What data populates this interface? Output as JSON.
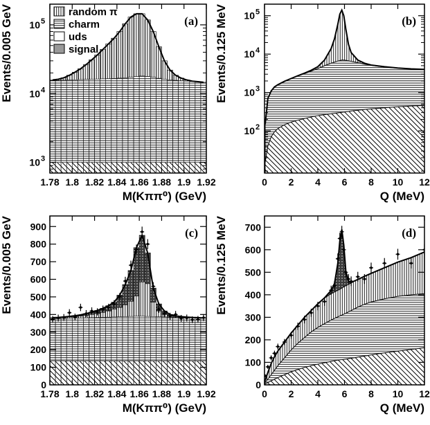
{
  "legend": [
    {
      "label": "random π",
      "pattern": "vstripe"
    },
    {
      "label": "charm",
      "pattern": "hstripe"
    },
    {
      "label": "uds",
      "pattern": "white"
    },
    {
      "label": "signal",
      "pattern": "gray"
    }
  ],
  "chart_data": [
    {
      "panel": "(a)",
      "type": "bar",
      "xlabel": "M(Kππ⁰) (GeV)",
      "ylabel": "Events/0.005 GeV",
      "xlim": [
        1.78,
        1.92
      ],
      "ylim": [
        700,
        200000
      ],
      "yscale": "log",
      "xticks": [
        "1.78",
        "1.8",
        "1.82",
        "1.84",
        "1.86",
        "1.88",
        "1.9",
        "1.92"
      ],
      "yticks": [
        {
          "v": 1000,
          "base": "10",
          "exp": "3"
        },
        {
          "v": 10000,
          "base": "10",
          "exp": "4"
        },
        {
          "v": 100000,
          "base": "10",
          "exp": "5"
        }
      ],
      "x": [
        1.7825,
        1.7875,
        1.7925,
        1.7975,
        1.8025,
        1.8075,
        1.8125,
        1.8175,
        1.8225,
        1.8275,
        1.8325,
        1.8375,
        1.8425,
        1.8475,
        1.8525,
        1.8575,
        1.8625,
        1.8675,
        1.8725,
        1.8775,
        1.8825,
        1.8875,
        1.8925,
        1.8975,
        1.9025,
        1.9075,
        1.9125,
        1.9175
      ],
      "series": [
        {
          "name": "uds",
          "values": [
            1000,
            1000,
            1000,
            1000,
            1000,
            1000,
            1000,
            1000,
            1000,
            1000,
            1000,
            1000,
            1000,
            1000,
            1000,
            1000,
            1000,
            1000,
            1000,
            1000,
            1000,
            1000,
            1000,
            1000,
            1000,
            1000,
            1000,
            1000
          ]
        },
        {
          "name": "charm",
          "values": [
            15500,
            15600,
            15700,
            15800,
            15900,
            16000,
            16100,
            16200,
            16300,
            16400,
            16500,
            16600,
            16800,
            17000,
            17300,
            17700,
            18000,
            17800,
            17300,
            16700,
            16200,
            15800,
            15600,
            15400,
            15200,
            15000,
            14800,
            14600
          ]
        },
        {
          "name": "random π",
          "values": [
            15800,
            16200,
            17000,
            18500,
            20500,
            23000,
            26500,
            31000,
            36500,
            44000,
            53000,
            64000,
            80000,
            104000,
            130000,
            145000,
            145000,
            118000,
            80000,
            48000,
            30000,
            22000,
            18500,
            16800,
            15800,
            15200,
            14900,
            14600
          ]
        }
      ]
    },
    {
      "panel": "(b)",
      "type": "area",
      "xlabel": "Q (MeV)",
      "ylabel": "Events/0.125 MeV",
      "xlim": [
        0,
        12
      ],
      "ylim": [
        8,
        200000
      ],
      "yscale": "log",
      "xticks": [
        "0",
        "2",
        "4",
        "6",
        "8",
        "10",
        "12"
      ],
      "yticks": [
        {
          "v": 100,
          "base": "10",
          "exp": "2"
        },
        {
          "v": 1000,
          "base": "10",
          "exp": "3"
        },
        {
          "v": 10000,
          "base": "10",
          "exp": "4"
        },
        {
          "v": 100000,
          "base": "10",
          "exp": "5"
        }
      ],
      "x": [
        0.05,
        0.25,
        0.5,
        0.75,
        1,
        1.5,
        2,
        2.5,
        3,
        3.5,
        4,
        4.5,
        5,
        5.25,
        5.5,
        5.65,
        5.8,
        5.95,
        6.1,
        6.3,
        6.5,
        7,
        7.5,
        8,
        9,
        10,
        11,
        12
      ],
      "series": [
        {
          "name": "uds",
          "values": [
            15,
            40,
            70,
            95,
            115,
            145,
            170,
            190,
            210,
            230,
            250,
            265,
            280,
            287,
            295,
            300,
            305,
            310,
            315,
            320,
            330,
            345,
            360,
            375,
            400,
            425,
            445,
            460
          ]
        },
        {
          "name": "charm",
          "values": [
            150,
            700,
            1100,
            1400,
            1600,
            1950,
            2300,
            2700,
            3100,
            3600,
            4200,
            5000,
            5800,
            6200,
            6600,
            6800,
            7000,
            7000,
            6900,
            6700,
            6500,
            6000,
            5500,
            5100,
            4600,
            4300,
            4100,
            4000
          ]
        },
        {
          "name": "random π",
          "values": [
            150,
            700,
            1100,
            1400,
            1600,
            1960,
            2320,
            2740,
            3200,
            3800,
            4700,
            7000,
            14000,
            25000,
            60000,
            110000,
            140000,
            100000,
            45000,
            18000,
            11000,
            7000,
            5800,
            5200,
            4700,
            4350,
            4120,
            4000
          ]
        }
      ]
    },
    {
      "panel": "(c)",
      "type": "bar",
      "xlabel": "M(Kππ⁰) (GeV)",
      "ylabel": "Events/0.005 GeV",
      "xlim": [
        1.78,
        1.92
      ],
      "ylim": [
        0,
        960
      ],
      "xticks": [
        "1.78",
        "1.8",
        "1.82",
        "1.84",
        "1.86",
        "1.88",
        "1.9",
        "1.92"
      ],
      "yticks": [
        "0",
        "100",
        "200",
        "300",
        "400",
        "500",
        "600",
        "700",
        "800",
        "900"
      ],
      "x": [
        1.7825,
        1.7875,
        1.7925,
        1.7975,
        1.8025,
        1.8075,
        1.8125,
        1.8175,
        1.8225,
        1.8275,
        1.8325,
        1.8375,
        1.8425,
        1.8475,
        1.8525,
        1.8575,
        1.8625,
        1.8675,
        1.8725,
        1.8775,
        1.8825,
        1.8875,
        1.8925,
        1.8975,
        1.9025,
        1.9075,
        1.9125,
        1.9175
      ],
      "series": [
        {
          "name": "uds",
          "values": [
            135,
            135,
            135,
            135,
            135,
            135,
            135,
            135,
            135,
            135,
            135,
            135,
            135,
            135,
            135,
            135,
            135,
            135,
            135,
            135,
            135,
            135,
            135,
            135,
            135,
            135,
            135,
            135
          ]
        },
        {
          "name": "charm",
          "values": [
            375,
            376,
            377,
            378,
            379,
            380,
            381,
            382,
            383,
            384,
            385,
            386,
            387,
            388,
            389,
            390,
            390,
            389,
            388,
            387,
            386,
            385,
            384,
            383,
            382,
            381,
            380,
            379
          ]
        },
        {
          "name": "random π",
          "values": [
            380,
            381,
            383,
            385,
            388,
            391,
            395,
            400,
            405,
            412,
            420,
            430,
            440,
            455,
            475,
            505,
            585,
            575,
            470,
            420,
            400,
            392,
            388,
            385,
            383,
            381,
            380,
            379
          ]
        },
        {
          "name": "signal",
          "values": [
            382,
            383,
            386,
            389,
            393,
            398,
            405,
            413,
            423,
            435,
            450,
            470,
            510,
            570,
            650,
            780,
            850,
            750,
            550,
            460,
            420,
            400,
            392,
            388,
            385,
            383,
            382,
            380
          ]
        },
        {
          "name": "data",
          "values": [
            372,
            380,
            383,
            410,
            385,
            440,
            405,
            420,
            415,
            430,
            440,
            460,
            500,
            590,
            680,
            770,
            870,
            800,
            560,
            430,
            405,
            390,
            400,
            378,
            380,
            370,
            372,
            382
          ]
        }
      ]
    },
    {
      "panel": "(d)",
      "type": "area",
      "xlabel": "Q (MeV)",
      "ylabel": "Events/0.125 MeV",
      "xlim": [
        0,
        12
      ],
      "ylim": [
        0,
        750
      ],
      "xticks": [
        "0",
        "2",
        "4",
        "6",
        "8",
        "10",
        "12"
      ],
      "yticks": [
        "0",
        "100",
        "200",
        "300",
        "400",
        "500",
        "600",
        "700"
      ],
      "x": [
        0.05,
        0.25,
        0.5,
        0.75,
        1,
        1.5,
        2,
        2.5,
        3,
        3.5,
        4,
        4.5,
        5,
        5.25,
        5.5,
        5.65,
        5.8,
        5.95,
        6.1,
        6.3,
        6.5,
        7,
        7.5,
        8,
        9,
        10,
        11,
        12
      ],
      "series": [
        {
          "name": "uds",
          "values": [
            5,
            10,
            18,
            25,
            32,
            45,
            58,
            68,
            77,
            85,
            92,
            98,
            104,
            107,
            110,
            111,
            112,
            113,
            114,
            116,
            118,
            123,
            128,
            133,
            142,
            150,
            157,
            165
          ]
        },
        {
          "name": "charm",
          "values": [
            12,
            25,
            45,
            65,
            85,
            120,
            155,
            185,
            210,
            235,
            255,
            272,
            288,
            295,
            302,
            306,
            310,
            314,
            318,
            324,
            330,
            345,
            358,
            368,
            382,
            393,
            400,
            405
          ]
        },
        {
          "name": "random π",
          "values": [
            20,
            55,
            95,
            125,
            150,
            190,
            230,
            265,
            300,
            330,
            360,
            385,
            405,
            412,
            420,
            424,
            430,
            435,
            440,
            446,
            452,
            468,
            482,
            495,
            520,
            545,
            565,
            590
          ]
        },
        {
          "name": "signal",
          "values": [
            20,
            55,
            95,
            125,
            150,
            190,
            230,
            265,
            300,
            330,
            360,
            386,
            420,
            450,
            540,
            640,
            690,
            620,
            505,
            460,
            455,
            468,
            482,
            495,
            520,
            545,
            565,
            590
          ]
        },
        {
          "name": "data",
          "values": [
            40,
            80,
            120,
            140,
            170,
            190,
            220,
            260,
            290,
            320,
            350,
            370,
            420,
            440,
            560,
            650,
            680,
            600,
            500,
            470,
            460,
            480,
            470,
            520,
            540,
            580,
            540,
            600
          ]
        }
      ]
    }
  ]
}
